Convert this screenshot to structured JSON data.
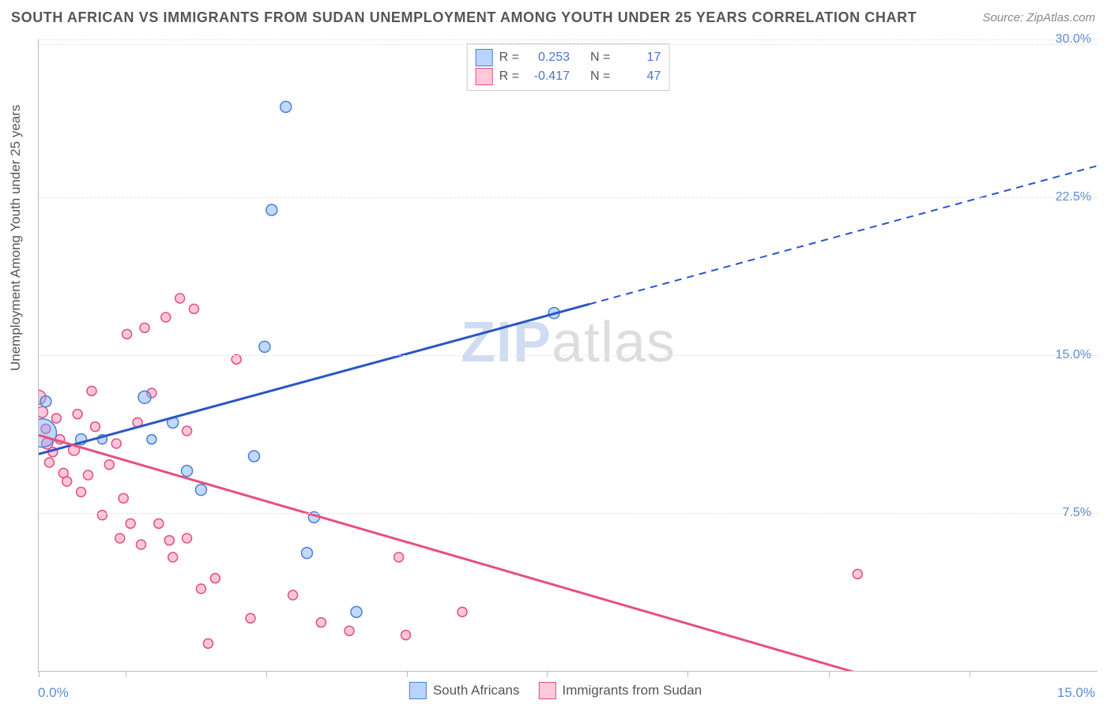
{
  "title": "SOUTH AFRICAN VS IMMIGRANTS FROM SUDAN UNEMPLOYMENT AMONG YOUTH UNDER 25 YEARS CORRELATION CHART",
  "source": "Source: ZipAtlas.com",
  "ylabel": "Unemployment Among Youth under 25 years",
  "watermark_zip": "ZIP",
  "watermark_atlas": "atlas",
  "chart": {
    "type": "scatter",
    "background_color": "#ffffff",
    "grid_color": "#e5e5e5",
    "axis_color": "#bbbbbb",
    "xlim": [
      0,
      15
    ],
    "ylim": [
      0,
      30
    ],
    "x_origin_label": "0.0%",
    "x_max_label": "15.0%",
    "x_tick_positions_pct": [
      0,
      8.2,
      21.5,
      34.8,
      48.0,
      61.3,
      74.6,
      87.9
    ],
    "y_ticks": [
      {
        "v": 30.0,
        "label": "30.0%"
      },
      {
        "v": 22.5,
        "label": "22.5%"
      },
      {
        "v": 15.0,
        "label": "15.0%"
      },
      {
        "v": 7.5,
        "label": "7.5%"
      }
    ],
    "series": [
      {
        "name": "South Africans",
        "key": "blue",
        "marker_fill": "rgba(120,170,255,0.45)",
        "marker_stroke": "#4a80d0",
        "line_color": "#2a56c6",
        "R": "0.253",
        "N": "17",
        "trend": {
          "x1": 0.0,
          "y1": 10.3,
          "x2": 15.0,
          "y2": 24.0,
          "solid_until_x": 7.8
        },
        "points": [
          {
            "x": 0.05,
            "y": 11.3,
            "r": 18
          },
          {
            "x": 0.1,
            "y": 12.8,
            "r": 7
          },
          {
            "x": 0.6,
            "y": 11.0,
            "r": 7
          },
          {
            "x": 0.9,
            "y": 11.0,
            "r": 6
          },
          {
            "x": 1.5,
            "y": 13.0,
            "r": 8
          },
          {
            "x": 1.6,
            "y": 11.0,
            "r": 6
          },
          {
            "x": 1.9,
            "y": 11.8,
            "r": 7
          },
          {
            "x": 2.1,
            "y": 9.5,
            "r": 7
          },
          {
            "x": 2.3,
            "y": 8.6,
            "r": 7
          },
          {
            "x": 3.2,
            "y": 15.4,
            "r": 7
          },
          {
            "x": 3.05,
            "y": 10.2,
            "r": 7
          },
          {
            "x": 3.5,
            "y": 26.8,
            "r": 7
          },
          {
            "x": 3.3,
            "y": 21.9,
            "r": 7
          },
          {
            "x": 3.8,
            "y": 5.6,
            "r": 7
          },
          {
            "x": 3.9,
            "y": 7.3,
            "r": 7
          },
          {
            "x": 4.5,
            "y": 2.8,
            "r": 7
          },
          {
            "x": 7.3,
            "y": 17.0,
            "r": 7
          }
        ]
      },
      {
        "name": "Immigrants from Sudan",
        "key": "pink",
        "marker_fill": "rgba(255,130,170,0.45)",
        "marker_stroke": "#e05080",
        "line_color": "#e94f7c",
        "R": "-0.417",
        "N": "47",
        "trend": {
          "x1": 0.0,
          "y1": 11.2,
          "x2": 11.8,
          "y2": -0.3,
          "solid_until_x": 11.8
        },
        "points": [
          {
            "x": 0.0,
            "y": 13.0,
            "r": 9
          },
          {
            "x": 0.05,
            "y": 12.3,
            "r": 7
          },
          {
            "x": 0.1,
            "y": 11.5,
            "r": 6
          },
          {
            "x": 0.12,
            "y": 10.8,
            "r": 7
          },
          {
            "x": 0.15,
            "y": 9.9,
            "r": 6
          },
          {
            "x": 0.2,
            "y": 10.4,
            "r": 6
          },
          {
            "x": 0.25,
            "y": 12.0,
            "r": 6
          },
          {
            "x": 0.3,
            "y": 11.0,
            "r": 6
          },
          {
            "x": 0.35,
            "y": 9.4,
            "r": 6
          },
          {
            "x": 0.4,
            "y": 9.0,
            "r": 6
          },
          {
            "x": 0.5,
            "y": 10.5,
            "r": 7
          },
          {
            "x": 0.55,
            "y": 12.2,
            "r": 6
          },
          {
            "x": 0.6,
            "y": 8.5,
            "r": 6
          },
          {
            "x": 0.7,
            "y": 9.3,
            "r": 6
          },
          {
            "x": 0.75,
            "y": 13.3,
            "r": 6
          },
          {
            "x": 0.8,
            "y": 11.6,
            "r": 6
          },
          {
            "x": 0.9,
            "y": 7.4,
            "r": 6
          },
          {
            "x": 1.0,
            "y": 9.8,
            "r": 6
          },
          {
            "x": 1.1,
            "y": 10.8,
            "r": 6
          },
          {
            "x": 1.15,
            "y": 6.3,
            "r": 6
          },
          {
            "x": 1.2,
            "y": 8.2,
            "r": 6
          },
          {
            "x": 1.25,
            "y": 16.0,
            "r": 6
          },
          {
            "x": 1.3,
            "y": 7.0,
            "r": 6
          },
          {
            "x": 1.4,
            "y": 11.8,
            "r": 6
          },
          {
            "x": 1.45,
            "y": 6.0,
            "r": 6
          },
          {
            "x": 1.5,
            "y": 16.3,
            "r": 6
          },
          {
            "x": 1.6,
            "y": 13.2,
            "r": 6
          },
          {
            "x": 1.7,
            "y": 7.0,
            "r": 6
          },
          {
            "x": 1.8,
            "y": 16.8,
            "r": 6
          },
          {
            "x": 1.85,
            "y": 6.2,
            "r": 6
          },
          {
            "x": 1.9,
            "y": 5.4,
            "r": 6
          },
          {
            "x": 2.0,
            "y": 17.7,
            "r": 6
          },
          {
            "x": 2.1,
            "y": 11.4,
            "r": 6
          },
          {
            "x": 2.1,
            "y": 6.3,
            "r": 6
          },
          {
            "x": 2.2,
            "y": 17.2,
            "r": 6
          },
          {
            "x": 2.3,
            "y": 3.9,
            "r": 6
          },
          {
            "x": 2.4,
            "y": 1.3,
            "r": 6
          },
          {
            "x": 2.5,
            "y": 4.4,
            "r": 6
          },
          {
            "x": 2.8,
            "y": 14.8,
            "r": 6
          },
          {
            "x": 3.0,
            "y": 2.5,
            "r": 6
          },
          {
            "x": 3.6,
            "y": 3.6,
            "r": 6
          },
          {
            "x": 4.0,
            "y": 2.3,
            "r": 6
          },
          {
            "x": 4.4,
            "y": 1.9,
            "r": 6
          },
          {
            "x": 5.1,
            "y": 5.4,
            "r": 6
          },
          {
            "x": 5.2,
            "y": 1.7,
            "r": 6
          },
          {
            "x": 6.0,
            "y": 2.8,
            "r": 6
          },
          {
            "x": 11.6,
            "y": 4.6,
            "r": 6
          }
        ]
      }
    ],
    "legend_top_labels": {
      "R": "R =",
      "N": "N ="
    },
    "legend_bottom": [
      {
        "key": "blue",
        "label": "South Africans"
      },
      {
        "key": "pink",
        "label": "Immigrants from Sudan"
      }
    ]
  }
}
